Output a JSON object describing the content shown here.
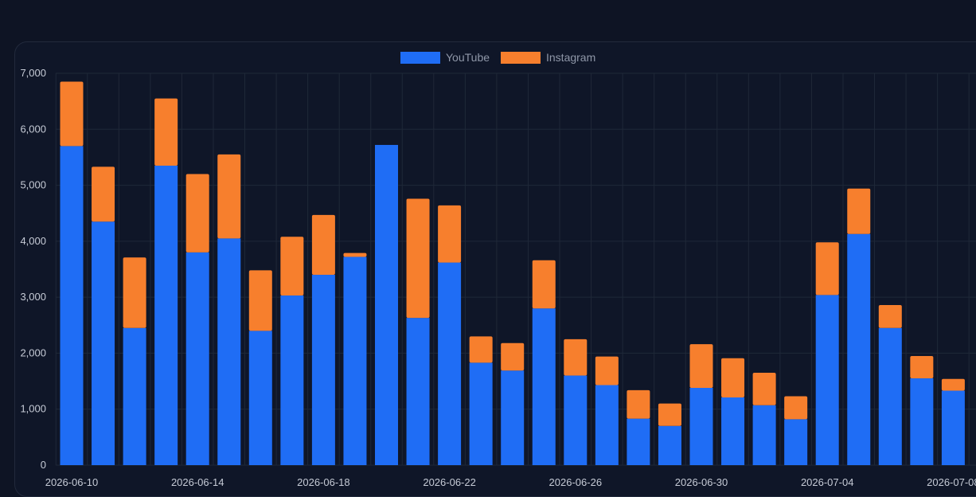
{
  "colors": {
    "background": "#0e1424",
    "panel": "#0f1628",
    "grid": "#1f2838",
    "youtube": "#1f6df5",
    "instagram": "#f77f2d",
    "tick_text": "#c6cbd6",
    "legend_text": "#8f97a8"
  },
  "chart_data": {
    "type": "bar",
    "stacked": true,
    "title": "",
    "xlabel": "",
    "ylabel": "",
    "ylim": [
      0,
      7000
    ],
    "yticks": [
      0,
      1000,
      2000,
      3000,
      4000,
      5000,
      6000,
      7000
    ],
    "ytick_labels": [
      "0",
      "1,000",
      "2,000",
      "3,000",
      "4,000",
      "5,000",
      "6,000",
      "7,000"
    ],
    "grid": true,
    "legend_position": "top-center",
    "x_tick_labels": [
      "2026-06-10",
      "2026-06-14",
      "2026-06-18",
      "2026-06-22",
      "2026-06-26",
      "2026-06-30",
      "2026-07-04",
      "2026-07-08"
    ],
    "categories": [
      "2026-06-10",
      "2026-06-11",
      "2026-06-12",
      "2026-06-13",
      "2026-06-14",
      "2026-06-15",
      "2026-06-16",
      "2026-06-17",
      "2026-06-18",
      "2026-06-19",
      "2026-06-20",
      "2026-06-21",
      "2026-06-22",
      "2026-06-23",
      "2026-06-24",
      "2026-06-25",
      "2026-06-26",
      "2026-06-27",
      "2026-06-28",
      "2026-06-29",
      "2026-06-30",
      "2026-07-01",
      "2026-07-02",
      "2026-07-03",
      "2026-07-04",
      "2026-07-05",
      "2026-07-06",
      "2026-07-07",
      "2026-07-08"
    ],
    "series": [
      {
        "name": "YouTube",
        "values": [
          5700,
          4350,
          2450,
          5350,
          3800,
          4050,
          2400,
          3030,
          3400,
          3720,
          5720,
          2630,
          3620,
          1830,
          1690,
          2800,
          1600,
          1430,
          830,
          700,
          1380,
          1210,
          1070,
          820,
          3040,
          4130,
          2450,
          1550,
          1330
        ]
      },
      {
        "name": "Instagram",
        "values": [
          1150,
          980,
          1260,
          1200,
          1400,
          1500,
          1080,
          1050,
          1070,
          70,
          0,
          2130,
          1020,
          470,
          490,
          860,
          650,
          510,
          510,
          400,
          780,
          700,
          580,
          410,
          940,
          810,
          410,
          400,
          210
        ]
      }
    ]
  }
}
